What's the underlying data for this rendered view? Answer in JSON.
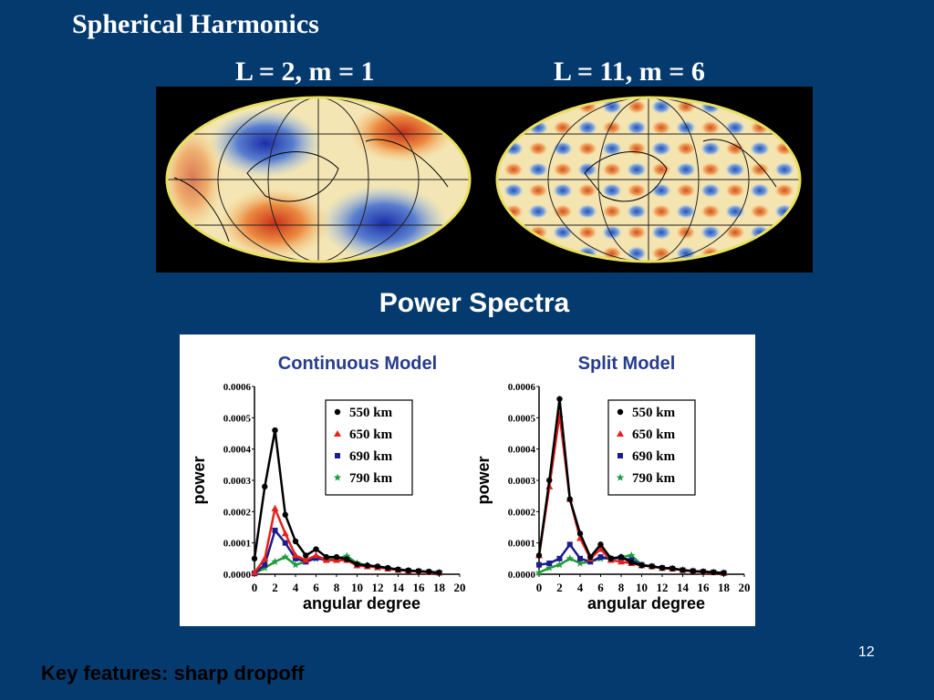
{
  "slide": {
    "title": "Spherical Harmonics",
    "map_left_label": "L = 2, m = 1",
    "map_right_label": "L = 11, m = 6",
    "section_title": "Power Spectra",
    "footer": "Key features:  sharp dropoff",
    "page_number": "12"
  },
  "chart_data": [
    {
      "type": "line",
      "title": "Continuous Model",
      "xlabel": "angular degree",
      "ylabel": "power",
      "xlim": [
        0,
        20
      ],
      "ylim": [
        0,
        0.0006
      ],
      "xticks": [
        "0",
        "2",
        "4",
        "6",
        "8",
        "10",
        "12",
        "14",
        "16",
        "18",
        "20"
      ],
      "yticks": [
        "0.0000",
        "0.0001",
        "0.0002",
        "0.0003",
        "0.0004",
        "0.0005",
        "0.0006"
      ],
      "legend_position": "top-right",
      "series": [
        {
          "name": "550 km",
          "color": "#000000",
          "marker": "circle",
          "x": [
            0,
            1,
            2,
            3,
            4,
            5,
            6,
            7,
            8,
            9,
            10,
            11,
            12,
            13,
            14,
            15,
            16,
            17,
            18
          ],
          "values": [
            5e-05,
            0.00028,
            0.00046,
            0.00019,
            0.000105,
            6e-05,
            8e-05,
            5.5e-05,
            5.5e-05,
            4.8e-05,
            3.2e-05,
            2.8e-05,
            2.5e-05,
            2e-05,
            1.5e-05,
            1.2e-05,
            1e-05,
            8e-06,
            5e-06
          ]
        },
        {
          "name": "650 km",
          "color": "#e8201c",
          "marker": "triangle",
          "x": [
            0,
            1,
            2,
            3,
            4,
            5,
            6,
            7,
            8,
            9,
            10,
            11,
            12,
            13,
            14,
            15,
            16,
            17,
            18
          ],
          "values": [
            5e-06,
            5e-05,
            0.00021,
            0.00013,
            6e-05,
            4.5e-05,
            6e-05,
            4.5e-05,
            4.5e-05,
            4.5e-05,
            2.8e-05,
            2.5e-05,
            2.2e-05,
            1.8e-05,
            1.4e-05,
            1.1e-05,
            9e-06,
            7e-06,
            5e-06
          ]
        },
        {
          "name": "690 km",
          "color": "#1c1c8c",
          "marker": "square",
          "x": [
            0,
            1,
            2,
            3,
            4,
            5,
            6,
            7,
            8,
            9,
            10,
            11,
            12,
            13,
            14,
            15,
            16,
            17,
            18
          ],
          "values": [
            3e-06,
            3e-05,
            0.00014,
            0.0001,
            5e-05,
            4e-05,
            5.2e-05,
            4.5e-05,
            4.5e-05,
            4.5e-05,
            2.8e-05,
            2.5e-05,
            2.2e-05,
            1.8e-05,
            1.4e-05,
            1.1e-05,
            9e-06,
            7e-06,
            5e-06
          ]
        },
        {
          "name": "790 km",
          "color": "#1f9a3c",
          "marker": "star",
          "x": [
            0,
            1,
            2,
            3,
            4,
            5,
            6,
            7,
            8,
            9,
            10,
            11,
            12,
            13,
            14,
            15,
            16,
            17,
            18
          ],
          "values": [
            2e-06,
            2e-05,
            4e-05,
            5.5e-05,
            3e-05,
            4e-05,
            5e-05,
            4.8e-05,
            5e-05,
            5.8e-05,
            3.5e-05,
            2.8e-05,
            2.2e-05,
            1.8e-05,
            1.4e-05,
            1.1e-05,
            9e-06,
            7e-06,
            5e-06
          ]
        }
      ]
    },
    {
      "type": "line",
      "title": "Split Model",
      "xlabel": "angular degree",
      "ylabel": "power",
      "xlim": [
        0,
        20
      ],
      "ylim": [
        0,
        0.0006
      ],
      "xticks": [
        "0",
        "2",
        "4",
        "6",
        "8",
        "10",
        "12",
        "14",
        "16",
        "18",
        "20"
      ],
      "yticks": [
        "0.0000",
        "0.0001",
        "0.0002",
        "0.0003",
        "0.0004",
        "0.0005",
        "0.0006"
      ],
      "legend_position": "top-right",
      "series": [
        {
          "name": "550 km",
          "color": "#000000",
          "marker": "circle",
          "x": [
            0,
            1,
            2,
            3,
            4,
            5,
            6,
            7,
            8,
            9,
            10,
            11,
            12,
            13,
            14,
            15,
            16,
            17,
            18
          ],
          "values": [
            6e-05,
            0.0003,
            0.00056,
            0.00024,
            0.00013,
            5.5e-05,
            9.5e-05,
            5e-05,
            5.5e-05,
            3.8e-05,
            2.8e-05,
            2.5e-05,
            2e-05,
            1.8e-05,
            1.3e-05,
            1e-05,
            8e-06,
            6e-06,
            4e-06
          ]
        },
        {
          "name": "650 km",
          "color": "#e8201c",
          "marker": "triangle",
          "x": [
            0,
            1,
            2,
            3,
            4,
            5,
            6,
            7,
            8,
            9,
            10,
            11,
            12,
            13,
            14,
            15,
            16,
            17,
            18
          ],
          "values": [
            6e-05,
            0.00028,
            0.00051,
            0.00024,
            0.000115,
            5e-05,
            8e-05,
            4.5e-05,
            4e-05,
            3.5e-05,
            2.8e-05,
            2.5e-05,
            2e-05,
            1.8e-05,
            1.3e-05,
            1e-05,
            8e-06,
            6e-06,
            4e-06
          ]
        },
        {
          "name": "690 km",
          "color": "#1c1c8c",
          "marker": "square",
          "x": [
            0,
            1,
            2,
            3,
            4,
            5,
            6,
            7,
            8,
            9,
            10,
            11,
            12,
            13,
            14,
            15,
            16,
            17,
            18
          ],
          "values": [
            3e-05,
            3.5e-05,
            5e-05,
            9.5e-05,
            5e-05,
            4e-05,
            5.5e-05,
            5e-05,
            5.2e-05,
            4.5e-05,
            3e-05,
            2.5e-05,
            2e-05,
            1.8e-05,
            1.3e-05,
            1e-05,
            8e-06,
            6e-06,
            4e-06
          ]
        },
        {
          "name": "790 km",
          "color": "#1f9a3c",
          "marker": "star",
          "x": [
            0,
            1,
            2,
            3,
            4,
            5,
            6,
            7,
            8,
            9,
            10,
            11,
            12,
            13,
            14,
            15,
            16,
            17,
            18
          ],
          "values": [
            5e-06,
            2e-05,
            3e-05,
            5e-05,
            3.5e-05,
            4e-05,
            5e-05,
            5e-05,
            5.5e-05,
            6e-05,
            3e-05,
            2.5e-05,
            2e-05,
            1.8e-05,
            1.3e-05,
            1e-05,
            8e-06,
            6e-06,
            4e-06
          ]
        }
      ]
    }
  ]
}
